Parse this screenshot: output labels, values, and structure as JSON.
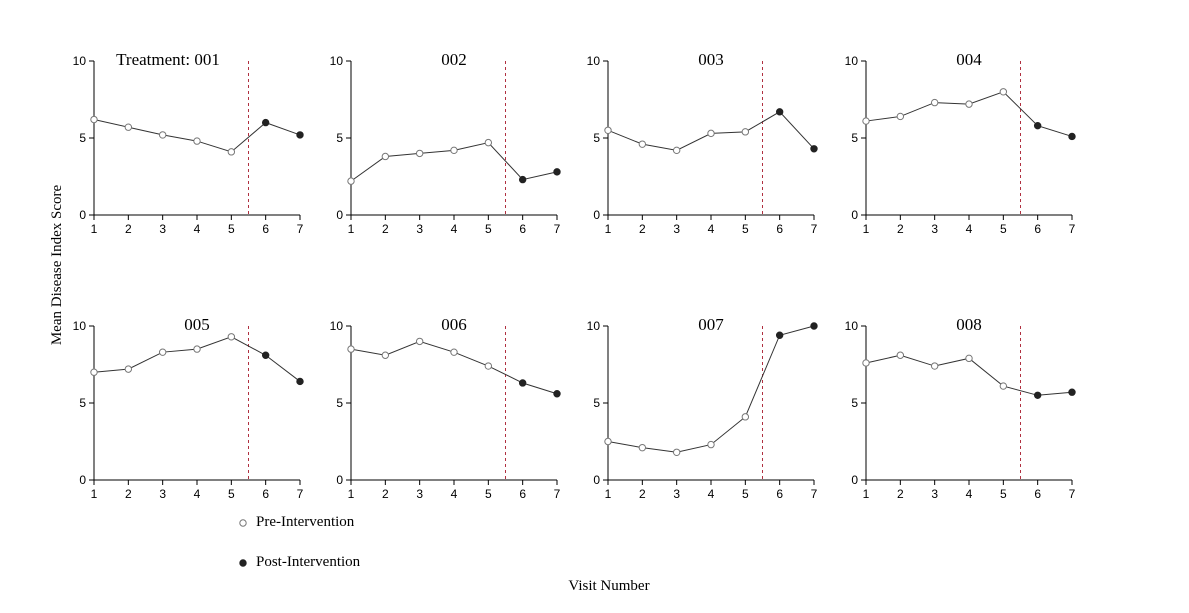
{
  "chart_data": {
    "type": "line",
    "ylabel": "Mean Disease Index Score",
    "xlabel": "Visit Number",
    "x": [
      1,
      2,
      3,
      4,
      5,
      6,
      7
    ],
    "xticks": [
      "1",
      "2",
      "3",
      "4",
      "5",
      "6",
      "7"
    ],
    "yticks": [
      "0",
      "5",
      "10"
    ],
    "ylim": [
      0,
      10
    ],
    "xlim": [
      1,
      7
    ],
    "intervention_after_visit": 5.5,
    "pre_visits": [
      1,
      2,
      3,
      4,
      5
    ],
    "post_visits": [
      6,
      7
    ],
    "colors": {
      "line": "#333333",
      "cutoff": "#b03040",
      "pre_fill": "#ffffff",
      "post_fill": "#222222"
    },
    "legend": {
      "placement": "bottom-left",
      "pre_label": "Pre-Intervention",
      "post_label": "Post-Intervention"
    },
    "panels": [
      {
        "title": "Treatment: 001",
        "values": [
          6.2,
          5.7,
          5.2,
          4.8,
          4.1,
          6.0,
          5.2
        ]
      },
      {
        "title": "002",
        "values": [
          2.2,
          3.8,
          4.0,
          4.2,
          4.7,
          2.3,
          2.8
        ]
      },
      {
        "title": "003",
        "values": [
          5.5,
          4.6,
          4.2,
          5.3,
          5.4,
          6.7,
          4.3
        ]
      },
      {
        "title": "004",
        "values": [
          6.1,
          6.4,
          7.3,
          7.2,
          8.0,
          5.8,
          5.1
        ]
      },
      {
        "title": "005",
        "values": [
          7.0,
          7.2,
          8.3,
          8.5,
          9.3,
          8.1,
          6.4
        ]
      },
      {
        "title": "006",
        "values": [
          8.5,
          8.1,
          9.0,
          8.3,
          7.4,
          6.3,
          5.6
        ]
      },
      {
        "title": "007",
        "values": [
          2.5,
          2.1,
          1.8,
          2.3,
          4.1,
          9.4,
          10.0
        ]
      },
      {
        "title": "008",
        "values": [
          7.6,
          8.1,
          7.4,
          7.9,
          6.1,
          5.5,
          5.7
        ]
      }
    ]
  }
}
